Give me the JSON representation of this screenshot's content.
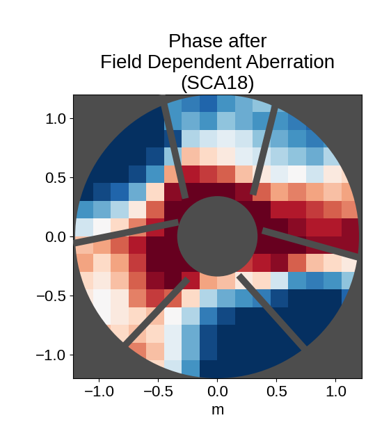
{
  "chart_data": {
    "type": "heatmap",
    "title": "Phase after\nField Dependent Aberration\n(SCA18)",
    "xlabel": "m",
    "xlim": [
      -1.22,
      1.22
    ],
    "ylim": [
      -1.2,
      1.2
    ],
    "xticks": [
      {
        "value": -1.0,
        "label": "−1.0"
      },
      {
        "value": -0.5,
        "label": "−0.5"
      },
      {
        "value": 0.0,
        "label": "0.0"
      },
      {
        "value": 0.5,
        "label": "0.5"
      },
      {
        "value": 1.0,
        "label": "1.0"
      }
    ],
    "yticks": [
      {
        "value": -1.0,
        "label": "−1.0"
      },
      {
        "value": -0.5,
        "label": "−0.5"
      },
      {
        "value": 0.0,
        "label": "0.0"
      },
      {
        "value": 0.5,
        "label": "0.5"
      },
      {
        "value": 1.0,
        "label": "1.0"
      }
    ],
    "clim": [
      -1,
      1
    ],
    "x": [
      -1.125,
      -0.975,
      -0.825,
      -0.675,
      -0.525,
      -0.375,
      -0.225,
      -0.075,
      0.075,
      0.225,
      0.375,
      0.525,
      0.675,
      0.825,
      0.975,
      1.125
    ],
    "y": [
      1.125,
      0.975,
      0.825,
      0.675,
      0.525,
      0.375,
      0.225,
      0.075,
      -0.075,
      -0.225,
      -0.375,
      -0.525,
      -0.675,
      -0.825,
      -0.975,
      -1.125
    ],
    "cells": [
      [
        null,
        null,
        null,
        -1,
        -1,
        -0.6,
        -0.7,
        -0.8,
        -0.6,
        -0.5,
        -0.4,
        -0.5,
        -0.6,
        null,
        null,
        null
      ],
      [
        null,
        null,
        -1,
        -1,
        -1,
        -0.6,
        -0.5,
        -0.6,
        -0.4,
        -0.5,
        -0.6,
        -0.6,
        -0.7,
        -0.8,
        null,
        null
      ],
      [
        null,
        -1,
        -1,
        -1,
        -1,
        -0.9,
        -0.3,
        -0.2,
        -0.1,
        -0.2,
        -0.4,
        -0.5,
        -0.6,
        -0.7,
        -0.6,
        null
      ],
      [
        -1,
        -1,
        -1,
        -1,
        -0.9,
        -0.4,
        0.3,
        0.2,
        0.1,
        -0.1,
        -0.2,
        -0.3,
        -0.4,
        -0.5,
        -0.3,
        -0.2
      ],
      [
        -1,
        -1,
        -1,
        -0.9,
        -0.6,
        0.4,
        0.8,
        0.7,
        0.6,
        0.3,
        0.1,
        -0.1,
        0.0,
        -0.2,
        0.1,
        0.2
      ],
      [
        -1,
        -0.9,
        -0.8,
        -0.5,
        0.2,
        0.9,
        1,
        1,
        1,
        0.9,
        0.6,
        0.4,
        0.5,
        0.4,
        0.3,
        0.4
      ],
      [
        -0.6,
        -0.5,
        -0.3,
        0.1,
        0.6,
        1,
        1,
        1,
        1,
        1,
        1,
        0.8,
        0.8,
        0.7,
        0.6,
        0.5
      ],
      [
        -0.2,
        0.0,
        0.2,
        0.5,
        0.8,
        1,
        1,
        null,
        null,
        1,
        1,
        1,
        0.9,
        0.8,
        0.8,
        0.9
      ],
      [
        0.3,
        0.4,
        0.6,
        0.8,
        1,
        1,
        1,
        null,
        null,
        1,
        1,
        1,
        1,
        0.9,
        0.9,
        0.9
      ],
      [
        0.4,
        0.2,
        0.4,
        0.7,
        1,
        1,
        1,
        0.9,
        0.8,
        0.7,
        0.8,
        0.9,
        0.6,
        0.3,
        0.2,
        0.1
      ],
      [
        0.2,
        0.1,
        0.3,
        0.6,
        0.9,
        1,
        0.8,
        0.4,
        0.3,
        0.1,
        0.2,
        -0.2,
        -0.6,
        -0.7,
        -0.6,
        -0.4
      ],
      [
        0.1,
        0.0,
        0.1,
        0.5,
        0.7,
        0.6,
        0.2,
        -0.3,
        -0.5,
        -0.6,
        -0.7,
        -0.9,
        -1,
        -1,
        -1,
        -0.8
      ],
      [
        0.2,
        0.0,
        0.1,
        0.2,
        0.3,
        0.0,
        -0.3,
        -0.7,
        -0.9,
        -1,
        -1,
        -1,
        -1,
        -1,
        -1,
        -1
      ],
      [
        null,
        0.3,
        0.2,
        0.3,
        0.2,
        -0.1,
        -0.5,
        -0.9,
        -1,
        -1,
        -1,
        -1,
        -1,
        -1,
        -1,
        null
      ],
      [
        null,
        null,
        0.6,
        0.5,
        0.3,
        -0.1,
        -0.5,
        -0.9,
        -1,
        -1,
        -1,
        -1,
        -1,
        -1,
        null,
        null
      ],
      [
        null,
        null,
        null,
        0.4,
        0.2,
        -0.2,
        -0.6,
        -1,
        -1,
        -1,
        -1,
        -1,
        -1,
        null,
        null,
        null
      ]
    ]
  }
}
